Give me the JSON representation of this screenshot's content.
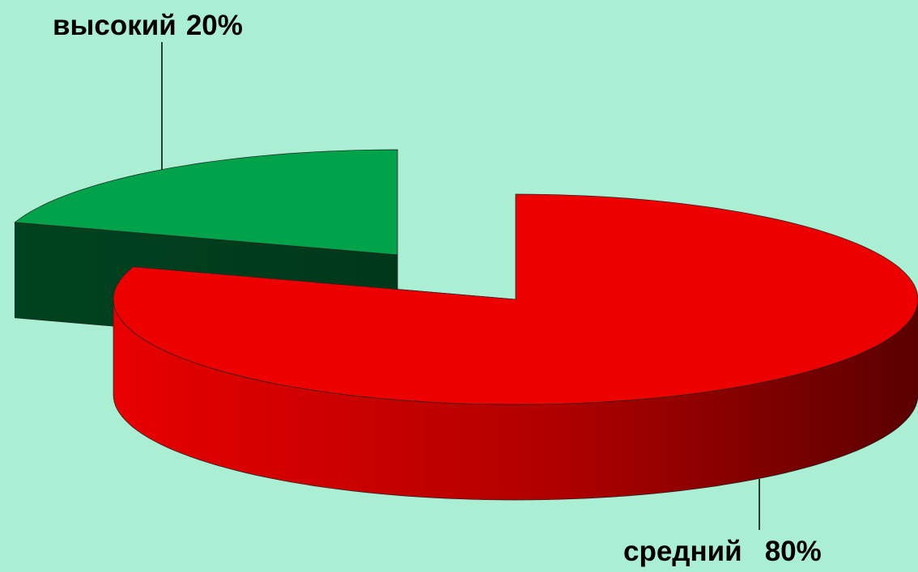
{
  "chart_data": {
    "type": "pie3d",
    "categories": [
      "высокий",
      "средний"
    ],
    "values": [
      20,
      80
    ],
    "value_labels": [
      "20%",
      "80%"
    ],
    "colors": [
      "#00a24a",
      "#ee0000"
    ]
  }
}
